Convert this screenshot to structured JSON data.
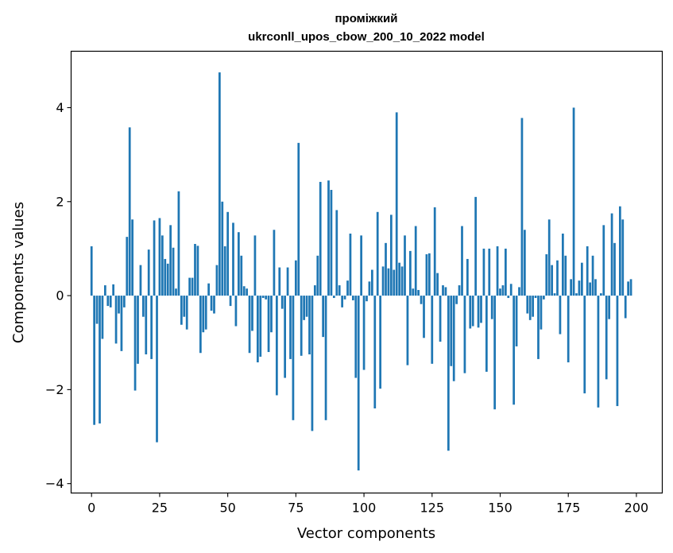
{
  "chart_data": {
    "type": "bar",
    "title_line1": "проміжкий",
    "title_line2": "ukrconll_upos_cbow_200_10_2022 model",
    "xlabel": "Vector components",
    "ylabel": "Components values",
    "xlim": [
      -7.5,
      209.5
    ],
    "ylim": [
      -4.2,
      5.2
    ],
    "xticks": [
      0,
      25,
      50,
      75,
      100,
      125,
      150,
      175,
      200
    ],
    "yticks": [
      -4,
      -2,
      0,
      2,
      4
    ],
    "ytick_labels": [
      "−4",
      "−2",
      "0",
      "2",
      "4"
    ],
    "bar_color": "#1f77b4",
    "grid": false,
    "values": [
      1.05,
      -2.75,
      -0.6,
      -2.72,
      -0.92,
      0.22,
      -0.22,
      -0.25,
      0.24,
      -1.02,
      -0.38,
      -1.18,
      -0.25,
      1.25,
      3.58,
      1.62,
      -2.02,
      -1.45,
      0.65,
      -0.45,
      -1.25,
      0.98,
      -1.35,
      1.6,
      -3.12,
      1.65,
      1.28,
      0.78,
      0.68,
      1.5,
      1.02,
      0.15,
      2.22,
      -0.62,
      -0.45,
      -0.72,
      0.38,
      0.38,
      1.1,
      1.06,
      -1.22,
      -0.78,
      -0.72,
      0.26,
      -0.32,
      -0.38,
      0.65,
      4.75,
      2.0,
      1.05,
      1.78,
      -0.22,
      1.55,
      -0.65,
      1.35,
      0.85,
      0.2,
      0.15,
      -1.22,
      -0.75,
      1.28,
      -1.42,
      -1.3,
      -0.05,
      -0.08,
      -1.2,
      -0.78,
      1.4,
      -2.12,
      0.6,
      -0.28,
      -1.75,
      0.6,
      -1.35,
      -2.65,
      0.75,
      3.25,
      -1.28,
      -0.52,
      -0.45,
      -1.25,
      -2.88,
      0.22,
      0.85,
      2.42,
      -0.88,
      -2.65,
      2.45,
      2.25,
      -0.05,
      1.82,
      0.22,
      -0.25,
      -0.08,
      0.32,
      1.32,
      -0.1,
      -1.75,
      -3.72,
      1.28,
      -1.58,
      -0.12,
      0.3,
      0.55,
      -2.4,
      1.78,
      -1.98,
      0.62,
      1.12,
      0.58,
      1.72,
      0.55,
      3.9,
      0.7,
      0.62,
      1.28,
      -1.48,
      0.95,
      0.15,
      1.48,
      0.12,
      -0.18,
      -0.9,
      0.88,
      0.9,
      -1.45,
      1.88,
      0.48,
      -0.98,
      0.22,
      0.18,
      -3.3,
      -1.5,
      -1.82,
      -0.18,
      0.22,
      1.48,
      -1.65,
      0.78,
      -0.7,
      -0.65,
      2.1,
      -0.68,
      -0.58,
      1.0,
      -1.62,
      1.0,
      -0.5,
      -2.42,
      1.05,
      0.15,
      0.22,
      1.0,
      -0.05,
      0.25,
      -2.32,
      -1.08,
      0.18,
      3.78,
      1.4,
      -0.38,
      -0.52,
      -0.45,
      -0.05,
      -1.35,
      -0.72,
      -0.08,
      0.88,
      1.62,
      0.65,
      0.05,
      0.75,
      -0.82,
      1.32,
      0.85,
      -1.42,
      0.35,
      4.0,
      0.05,
      0.32,
      0.7,
      -2.08,
      1.05,
      0.28,
      0.85,
      0.35,
      -2.38,
      0.05,
      1.5,
      -1.78,
      -0.5,
      1.75,
      1.12,
      -2.35,
      1.9,
      1.62,
      -0.48,
      0.3,
      0.35
    ]
  }
}
